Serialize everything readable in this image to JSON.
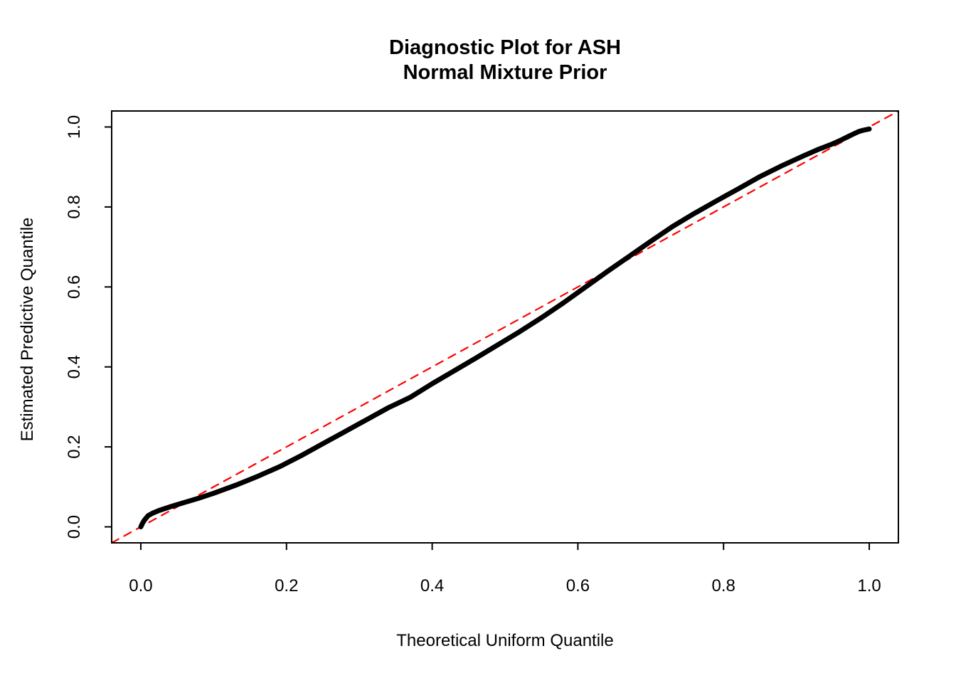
{
  "title": {
    "line1": "Diagnostic Plot for ASH",
    "line2": "Normal Mixture Prior"
  },
  "colors": {
    "curve": "#000000",
    "reference_line": "#FF0000",
    "frame": "#000000",
    "background": "#FFFFFF",
    "text": "#000000"
  },
  "chart_data": {
    "type": "line",
    "title": "Diagnostic Plot for ASH\nNormal Mixture Prior",
    "xlabel": "Theoretical Uniform Quantile",
    "ylabel": "Estimated Predictive Quantile",
    "xlim": [
      -0.04,
      1.04
    ],
    "ylim": [
      -0.04,
      1.04
    ],
    "grid": false,
    "legend": "none",
    "xticks": [
      0.0,
      0.2,
      0.4,
      0.6,
      0.8,
      1.0
    ],
    "yticks": [
      0.0,
      0.2,
      0.4,
      0.6,
      0.8,
      1.0
    ],
    "xtick_labels": [
      "0.0",
      "0.2",
      "0.4",
      "0.6",
      "0.8",
      "1.0"
    ],
    "ytick_labels": [
      "0.0",
      "0.2",
      "0.4",
      "0.6",
      "0.8",
      "1.0"
    ],
    "series": [
      {
        "name": "estimated-predictive-quantile-curve",
        "style": "solid",
        "color": "#000000",
        "width": 7,
        "points": [
          [
            0.0,
            0.0
          ],
          [
            0.002,
            0.008
          ],
          [
            0.005,
            0.017
          ],
          [
            0.01,
            0.028
          ],
          [
            0.016,
            0.034
          ],
          [
            0.025,
            0.041
          ],
          [
            0.04,
            0.05
          ],
          [
            0.06,
            0.061
          ],
          [
            0.08,
            0.072
          ],
          [
            0.1,
            0.084
          ],
          [
            0.13,
            0.104
          ],
          [
            0.16,
            0.126
          ],
          [
            0.19,
            0.15
          ],
          [
            0.22,
            0.178
          ],
          [
            0.25,
            0.208
          ],
          [
            0.28,
            0.238
          ],
          [
            0.31,
            0.268
          ],
          [
            0.34,
            0.298
          ],
          [
            0.37,
            0.324
          ],
          [
            0.4,
            0.358
          ],
          [
            0.43,
            0.39
          ],
          [
            0.46,
            0.422
          ],
          [
            0.49,
            0.455
          ],
          [
            0.52,
            0.488
          ],
          [
            0.55,
            0.523
          ],
          [
            0.58,
            0.56
          ],
          [
            0.61,
            0.599
          ],
          [
            0.64,
            0.638
          ],
          [
            0.67,
            0.676
          ],
          [
            0.7,
            0.714
          ],
          [
            0.73,
            0.751
          ],
          [
            0.76,
            0.784
          ],
          [
            0.79,
            0.815
          ],
          [
            0.82,
            0.845
          ],
          [
            0.85,
            0.876
          ],
          [
            0.88,
            0.903
          ],
          [
            0.91,
            0.928
          ],
          [
            0.93,
            0.944
          ],
          [
            0.95,
            0.958
          ],
          [
            0.962,
            0.968
          ],
          [
            0.972,
            0.977
          ],
          [
            0.98,
            0.984
          ],
          [
            0.986,
            0.989
          ],
          [
            0.992,
            0.992
          ],
          [
            1.0,
            0.995
          ]
        ]
      },
      {
        "name": "reference-diagonal",
        "style": "dashed",
        "color": "#FF0000",
        "width": 2.2,
        "points": [
          [
            -0.04,
            -0.04
          ],
          [
            1.04,
            1.04
          ]
        ]
      }
    ]
  }
}
